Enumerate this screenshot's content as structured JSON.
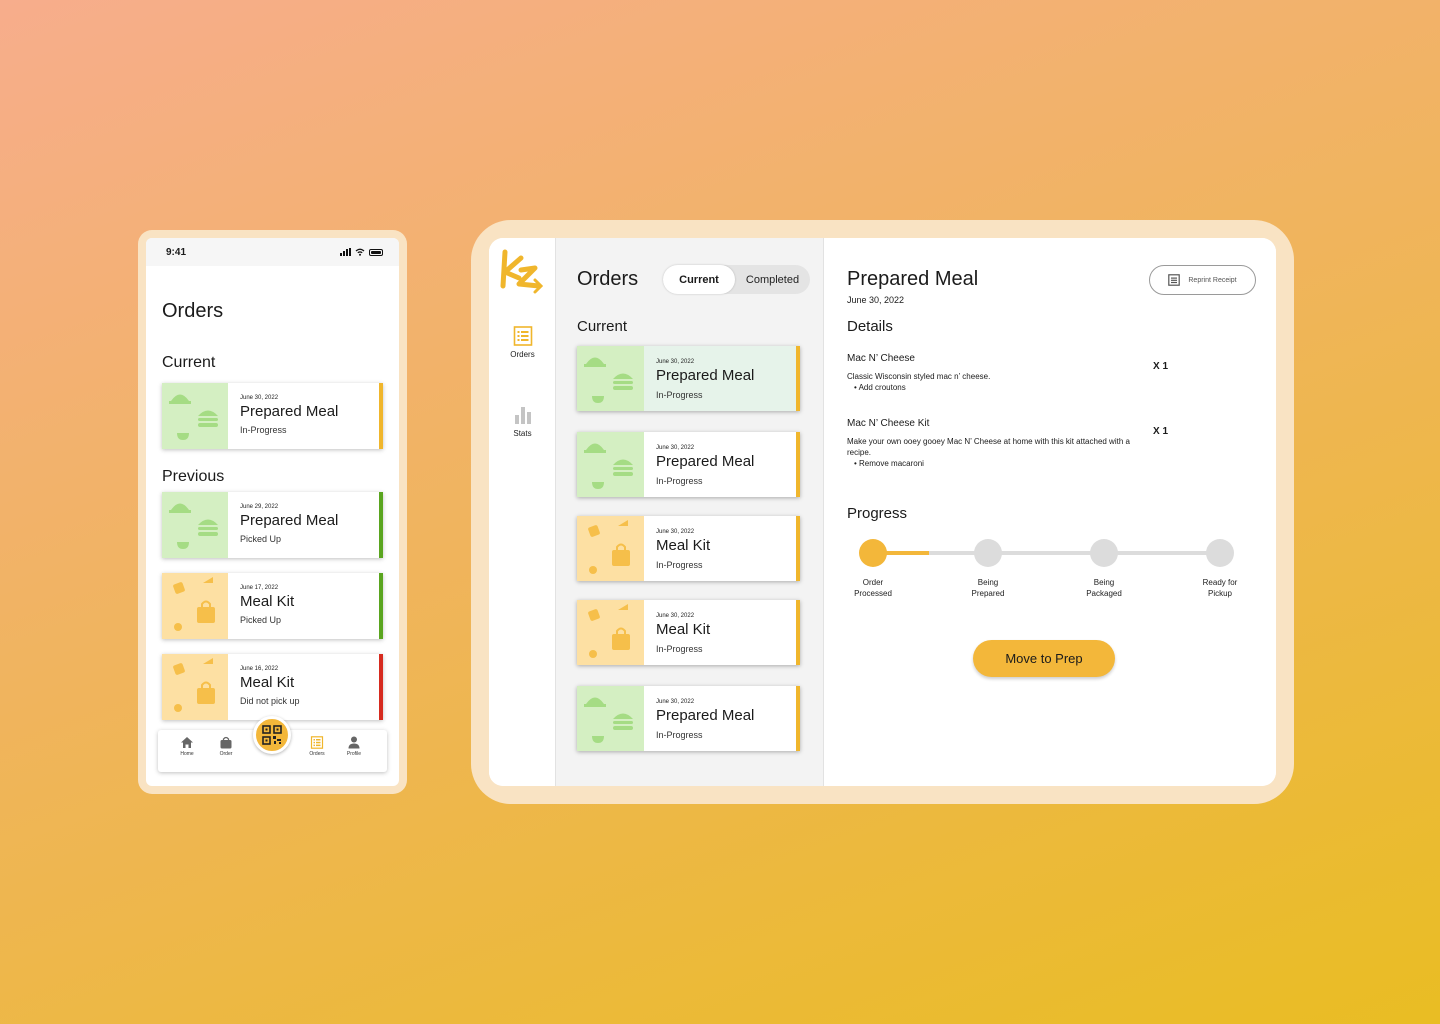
{
  "colors": {
    "accent": "#f3b73a",
    "green_thumb": "#d4efc2",
    "yellow_thumb": "#fde0a3",
    "picked_up": "#5aa51f",
    "missed": "#d62b1f"
  },
  "phone": {
    "status_time": "9:41",
    "title": "Orders",
    "current_label": "Current",
    "previous_label": "Previous",
    "current_orders": [
      {
        "date": "June 30, 2022",
        "title": "Prepared Meal",
        "status": "In-Progress",
        "kind": "meal",
        "status_color": "#f0b62c"
      }
    ],
    "previous_orders": [
      {
        "date": "June 29, 2022",
        "title": "Prepared Meal",
        "status": "Picked Up",
        "kind": "meal",
        "status_color": "#5aa51f"
      },
      {
        "date": "June 17, 2022",
        "title": "Meal Kit",
        "status": "Picked Up",
        "kind": "kit",
        "status_color": "#5aa51f"
      },
      {
        "date": "June 16, 2022",
        "title": "Meal Kit",
        "status": "Did not pick up",
        "kind": "kit",
        "status_color": "#d62b1f"
      }
    ],
    "nav": {
      "home": "Home",
      "order": "Order",
      "orders": "Orders",
      "profile": "Profile"
    }
  },
  "tablet": {
    "rail": {
      "orders": "Orders",
      "stats": "Stats"
    },
    "list": {
      "title": "Orders",
      "tab_current": "Current",
      "tab_completed": "Completed",
      "section": "Current",
      "orders": [
        {
          "date": "June 30, 2022",
          "title": "Prepared Meal",
          "status": "In-Progress",
          "kind": "meal",
          "selected": true
        },
        {
          "date": "June 30, 2022",
          "title": "Prepared Meal",
          "status": "In-Progress",
          "kind": "meal",
          "selected": false
        },
        {
          "date": "June 30, 2022",
          "title": "Meal Kit",
          "status": "In-Progress",
          "kind": "kit",
          "selected": false
        },
        {
          "date": "June 30, 2022",
          "title": "Meal Kit",
          "status": "In-Progress",
          "kind": "kit",
          "selected": false
        },
        {
          "date": "June 30, 2022",
          "title": "Prepared Meal",
          "status": "In-Progress",
          "kind": "meal",
          "selected": false
        }
      ]
    },
    "detail": {
      "title": "Prepared Meal",
      "date": "June 30, 2022",
      "reprint": "Reprint Receipt",
      "details_heading": "Details",
      "items": [
        {
          "name": "Mac N’ Cheese",
          "qty": "X 1",
          "desc": "Classic Wisconsin styled mac n’ cheese.",
          "mod": "Add croutons"
        },
        {
          "name": "Mac N’ Cheese Kit",
          "qty": "X 1",
          "desc": "Make your own ooey gooey Mac N’ Cheese at home with this kit attached with a recipe.",
          "mod": "Remove macaroni"
        }
      ],
      "progress_heading": "Progress",
      "progress_fraction": 0.16,
      "steps": [
        {
          "line1": "Order",
          "line2": "Processed",
          "done": true
        },
        {
          "line1": "Being",
          "line2": "Prepared",
          "done": false
        },
        {
          "line1": "Being",
          "line2": "Packaged",
          "done": false
        },
        {
          "line1": "Ready for",
          "line2": "Pickup",
          "done": false
        }
      ],
      "cta": "Move to Prep"
    }
  }
}
